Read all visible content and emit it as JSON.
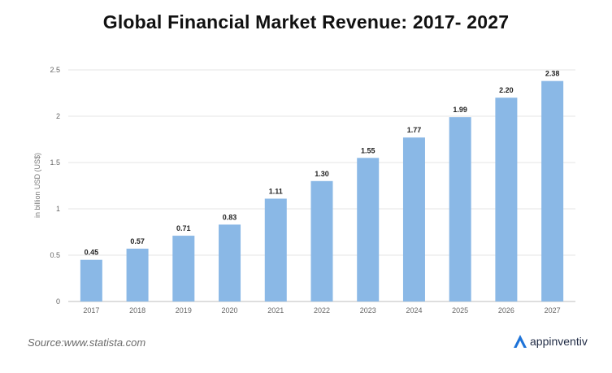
{
  "chart_data": {
    "type": "bar",
    "title": "Global Financial Market Revenue: 2017- 2027",
    "xlabel": "",
    "ylabel": "in billion USD (US$)",
    "categories": [
      "2017",
      "2018",
      "2019",
      "2020",
      "2021",
      "2022",
      "2023",
      "2024",
      "2025",
      "2026",
      "2027"
    ],
    "values": [
      0.45,
      0.57,
      0.71,
      0.83,
      1.11,
      1.3,
      1.55,
      1.77,
      1.99,
      2.2,
      2.38
    ],
    "value_labels": [
      "0.45",
      "0.57",
      "0.71",
      "0.83",
      "1.11",
      "1.30",
      "1.55",
      "1.77",
      "1.99",
      "2.20",
      "2.38"
    ],
    "ylim": [
      0,
      2.5
    ],
    "yticks": [
      0,
      0.5,
      1,
      1.5,
      2,
      2.5
    ],
    "ytick_labels": [
      "0",
      "0.5",
      "1",
      "1.5",
      "2",
      "2.5"
    ],
    "grid": true,
    "bar_color": "#8ab8e6",
    "grid_color": "#e6e6e6"
  },
  "footer": {
    "source": "Source:www.statista.com",
    "brand": "appinventiv",
    "brand_logo_color": "#1e73d8"
  }
}
